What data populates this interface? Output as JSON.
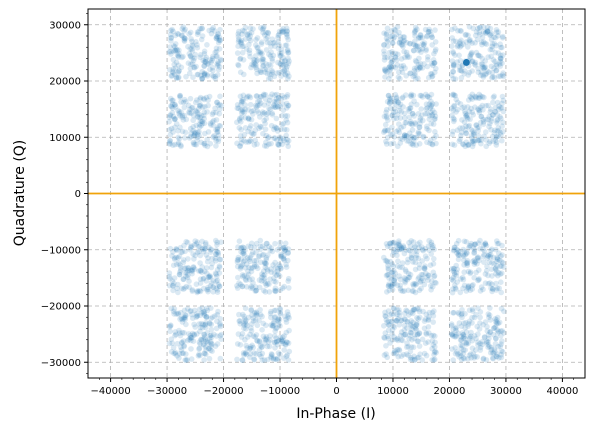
{
  "chart_data": {
    "type": "scatter",
    "title": "",
    "xlabel": "In-Phase (I)",
    "ylabel": "Quadrature (Q)",
    "xlim": [
      -44000,
      44000
    ],
    "ylim": [
      -32800,
      32800
    ],
    "xticks": [
      -40000,
      -30000,
      -20000,
      -10000,
      0,
      10000,
      20000,
      30000,
      40000
    ],
    "yticks": [
      -30000,
      -20000,
      -10000,
      0,
      10000,
      20000,
      30000
    ],
    "xtick_labels": [
      "−40000",
      "−30000",
      "−20000",
      "−10000",
      "0",
      "10000",
      "20000",
      "30000",
      "40000"
    ],
    "ytick_labels": [
      "−30000",
      "−20000",
      "−10000",
      "0",
      "10000",
      "20000",
      "30000"
    ],
    "grid": true,
    "reference_lines": {
      "x": 0,
      "y": 0,
      "color": "#f0a30a"
    },
    "point_color": "#1f77b4",
    "constellation": {
      "I_levels": [
        -25000,
        -13000,
        13000,
        25000
      ],
      "Q_levels": [
        -25000,
        -13000,
        13000,
        25000
      ],
      "spread": 3000
    },
    "highlight_point": {
      "x": 23000,
      "y": 23300
    }
  }
}
